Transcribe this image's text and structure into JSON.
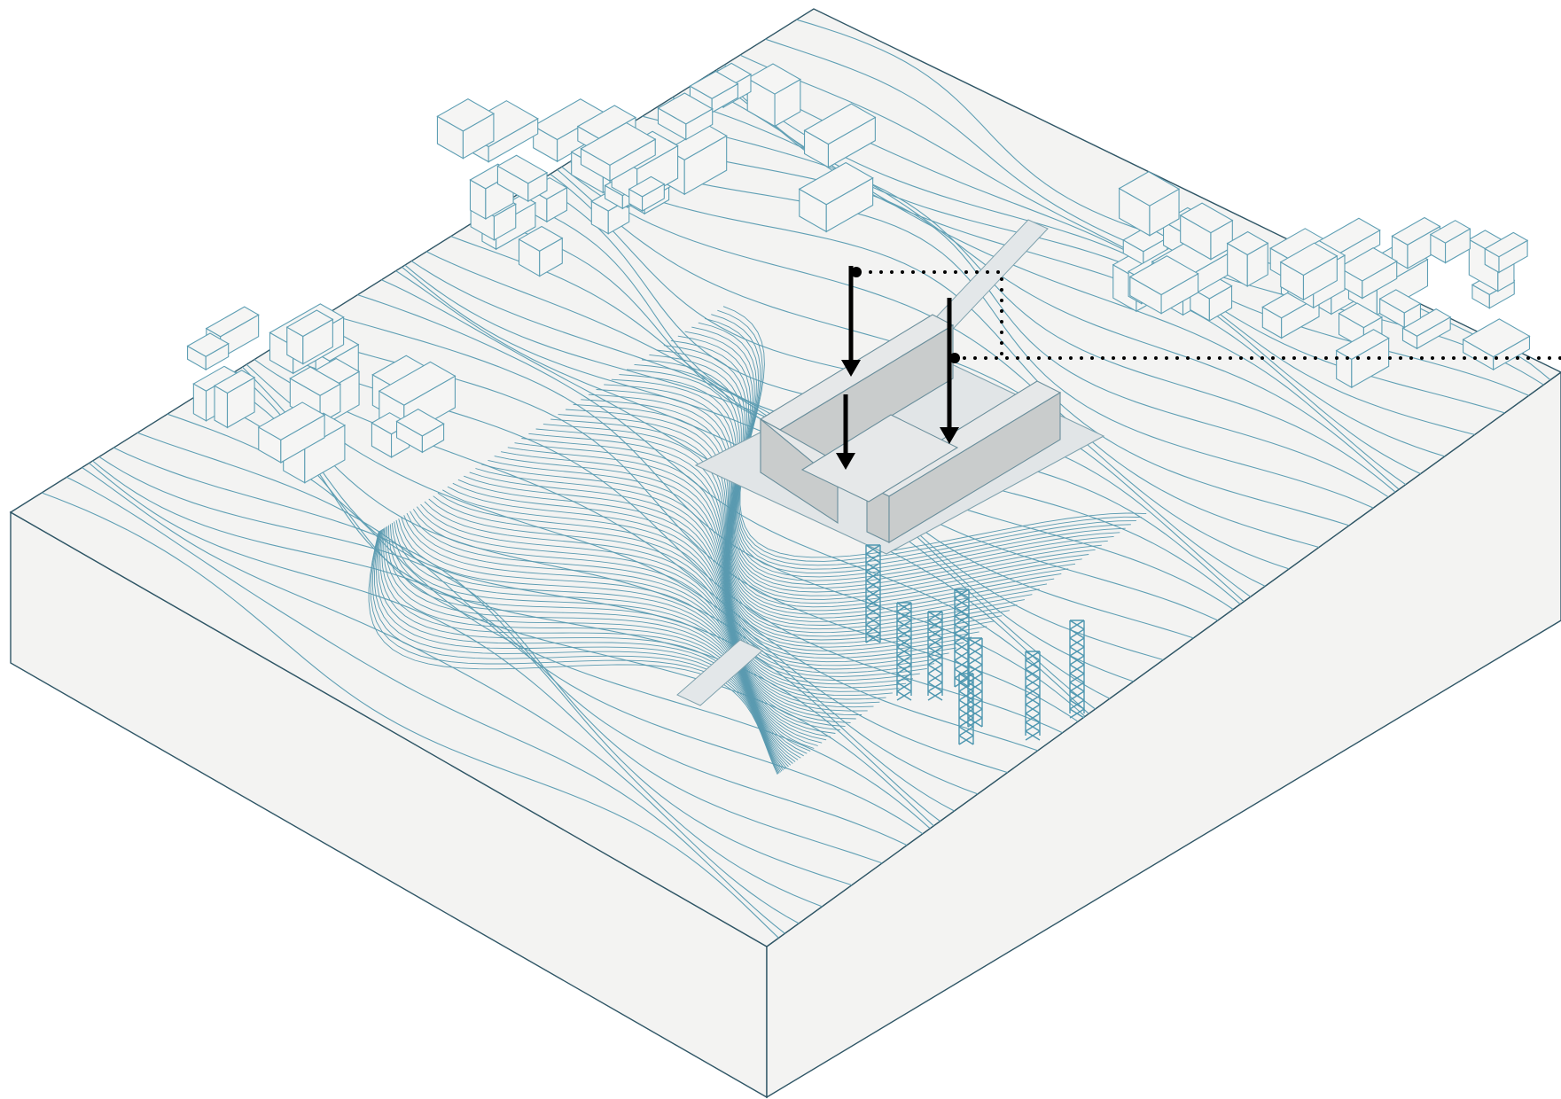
{
  "diagram": {
    "kind": "isometric-site-model",
    "colors": {
      "background": "#ffffff",
      "block_fill": "#f3f3f2",
      "block_edge": "#2f5666",
      "contour": "#5f9fb4",
      "proposed_building": "#c9cccc",
      "towers": "#4e97b0",
      "annotation": "#000000"
    },
    "elements": {
      "terrain_block": "terrain-block",
      "contours": "contour-lines",
      "existing_buildings": "existing-buildings",
      "proposed_building": "proposed-building",
      "towers": "lattice-towers",
      "arrows": "downward-arrows",
      "dotted_leaders": "dotted-leader-lines"
    },
    "tower_count": 8,
    "arrow_count": 3
  }
}
